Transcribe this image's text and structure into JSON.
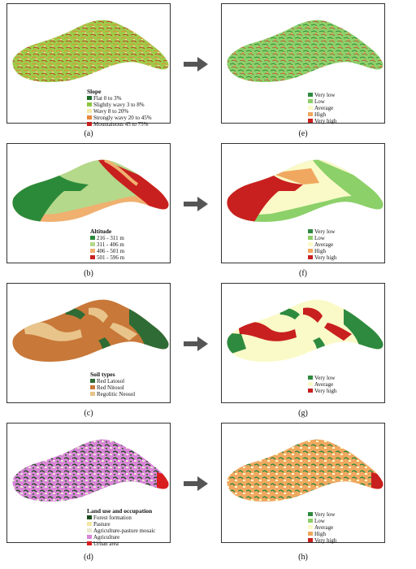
{
  "panels": [
    {
      "id": "a",
      "caption": "(a)",
      "legend_title": "Slope",
      "legend": [
        {
          "label": "Flat 0 to 3%",
          "color": "#1e6b2a"
        },
        {
          "label": "Slightly wavy 3 to 8%",
          "color": "#8cc63f"
        },
        {
          "label": "Wavy 8 to 20%",
          "color": "#f4e9a8"
        },
        {
          "label": "Strongly wavy 20 to 45%",
          "color": "#e8873a"
        },
        {
          "label": "Mountainous 45 to 75%",
          "color": "#c8201e"
        }
      ]
    },
    {
      "id": "b",
      "caption": "(b)",
      "legend_title": "Altitude",
      "legend": [
        {
          "label": "216 - 311 m",
          "color": "#2a8a3a"
        },
        {
          "label": "311 - 406 m",
          "color": "#b5d98a"
        },
        {
          "label": "406 - 501 m",
          "color": "#f0b070"
        },
        {
          "label": "501 - 596 m",
          "color": "#c8201e"
        }
      ]
    },
    {
      "id": "c",
      "caption": "(c)",
      "legend_title": "Soil types",
      "legend": [
        {
          "label": "Red Latosol",
          "color": "#2e6b35"
        },
        {
          "label": "Red Nitosol",
          "color": "#c87838"
        },
        {
          "label": "Regolitic Neosol",
          "color": "#e8c48a"
        }
      ]
    },
    {
      "id": "d",
      "caption": "(d)",
      "legend_title": "Land use and occupation",
      "legend": [
        {
          "label": "Forest formation",
          "color": "#1f4d1f"
        },
        {
          "label": "Pasture",
          "color": "#f2e6a0"
        },
        {
          "label": "Agriculture-pasture mosaic",
          "color": "#e8e8d0"
        },
        {
          "label": "Agriculture",
          "color": "#d986d9"
        },
        {
          "label": "Urban area",
          "color": "#d81e1e"
        }
      ]
    },
    {
      "id": "e",
      "caption": "(e)",
      "legend_title": "",
      "legend": [
        {
          "label": "Very low",
          "color": "#2e8a3e"
        },
        {
          "label": "Low",
          "color": "#8cd06a"
        },
        {
          "label": "Average",
          "color": "#fafac8"
        },
        {
          "label": "High",
          "color": "#f0a860"
        },
        {
          "label": "Very high",
          "color": "#c8201e"
        }
      ]
    },
    {
      "id": "f",
      "caption": "(f)",
      "legend_title": "",
      "legend": [
        {
          "label": "Very low",
          "color": "#2e8a3e"
        },
        {
          "label": "Low",
          "color": "#8cd06a"
        },
        {
          "label": "Average",
          "color": "#fafac8"
        },
        {
          "label": "High",
          "color": "#f0a860"
        },
        {
          "label": "Very high",
          "color": "#c8201e"
        }
      ]
    },
    {
      "id": "g",
      "caption": "(g)",
      "legend_title": "",
      "legend": [
        {
          "label": "Very low",
          "color": "#2e8a3e"
        },
        {
          "label": "Average",
          "color": "#fafac8"
        },
        {
          "label": "Very high",
          "color": "#c8201e"
        }
      ]
    },
    {
      "id": "h",
      "caption": "(h)",
      "legend_title": "",
      "legend": [
        {
          "label": "Very low",
          "color": "#2e8a3e"
        },
        {
          "label": "Low",
          "color": "#8cd06a"
        },
        {
          "label": "Average",
          "color": "#fafac8"
        },
        {
          "label": "High",
          "color": "#f0a860"
        },
        {
          "label": "Very high",
          "color": "#c8201e"
        }
      ]
    }
  ]
}
